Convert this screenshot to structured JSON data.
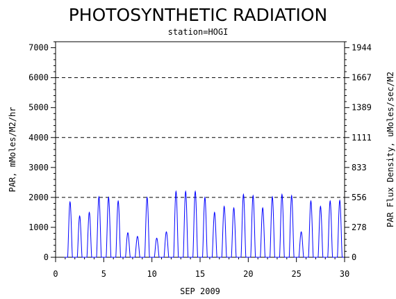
{
  "chart_data": {
    "type": "line",
    "title": "PHOTOSYNTHETIC RADIATION",
    "subtitle": "station=HOGI",
    "xlabel": "SEP 2009",
    "ylabel_left": "PAR, mMoles/M2/hr",
    "ylabel_right": "PAR Flux Density, uMoles/sec/M2",
    "xlim": [
      0,
      30
    ],
    "ylim": [
      0,
      7200
    ],
    "x_ticks": [
      0,
      5,
      10,
      15,
      20,
      25,
      30
    ],
    "y_ticks_left": [
      0,
      1000,
      2000,
      3000,
      4000,
      5000,
      6000,
      7000
    ],
    "y_ticks_right": [
      {
        "value": 0,
        "label": "0"
      },
      {
        "value": 1000,
        "label": "278"
      },
      {
        "value": 2000,
        "label": "556"
      },
      {
        "value": 3000,
        "label": "833"
      },
      {
        "value": 4000,
        "label": "1111"
      },
      {
        "value": 5000,
        "label": "1389"
      },
      {
        "value": 6000,
        "label": "1667"
      },
      {
        "value": 7000,
        "label": "1944"
      }
    ],
    "gridlines_y": [
      2000,
      4000,
      6000
    ],
    "series_color": "#0000ff",
    "series": [
      {
        "name": "",
        "daily_peaks": [
          {
            "day": 1.5,
            "peak": 1850
          },
          {
            "day": 2.5,
            "peak": 1380
          },
          {
            "day": 3.5,
            "peak": 1500
          },
          {
            "day": 4.5,
            "peak": 2020
          },
          {
            "day": 5.5,
            "peak": 2000
          },
          {
            "day": 6.5,
            "peak": 1880
          },
          {
            "day": 7.5,
            "peak": 820
          },
          {
            "day": 8.5,
            "peak": 700
          },
          {
            "day": 9.5,
            "peak": 2000
          },
          {
            "day": 10.5,
            "peak": 640
          },
          {
            "day": 11.5,
            "peak": 850
          },
          {
            "day": 12.5,
            "peak": 2200
          },
          {
            "day": 13.5,
            "peak": 2200
          },
          {
            "day": 14.5,
            "peak": 2200
          },
          {
            "day": 15.5,
            "peak": 2000
          },
          {
            "day": 16.5,
            "peak": 1500
          },
          {
            "day": 17.5,
            "peak": 1700
          },
          {
            "day": 18.5,
            "peak": 1650
          },
          {
            "day": 19.5,
            "peak": 2100
          },
          {
            "day": 20.5,
            "peak": 2060
          },
          {
            "day": 21.5,
            "peak": 1650
          },
          {
            "day": 22.5,
            "peak": 2020
          },
          {
            "day": 23.5,
            "peak": 2100
          },
          {
            "day": 24.5,
            "peak": 2060
          },
          {
            "day": 25.5,
            "peak": 850
          },
          {
            "day": 26.5,
            "peak": 1880
          },
          {
            "day": 27.5,
            "peak": 1700
          },
          {
            "day": 28.5,
            "peak": 1880
          },
          {
            "day": 29.5,
            "peak": 1900
          }
        ]
      }
    ]
  }
}
